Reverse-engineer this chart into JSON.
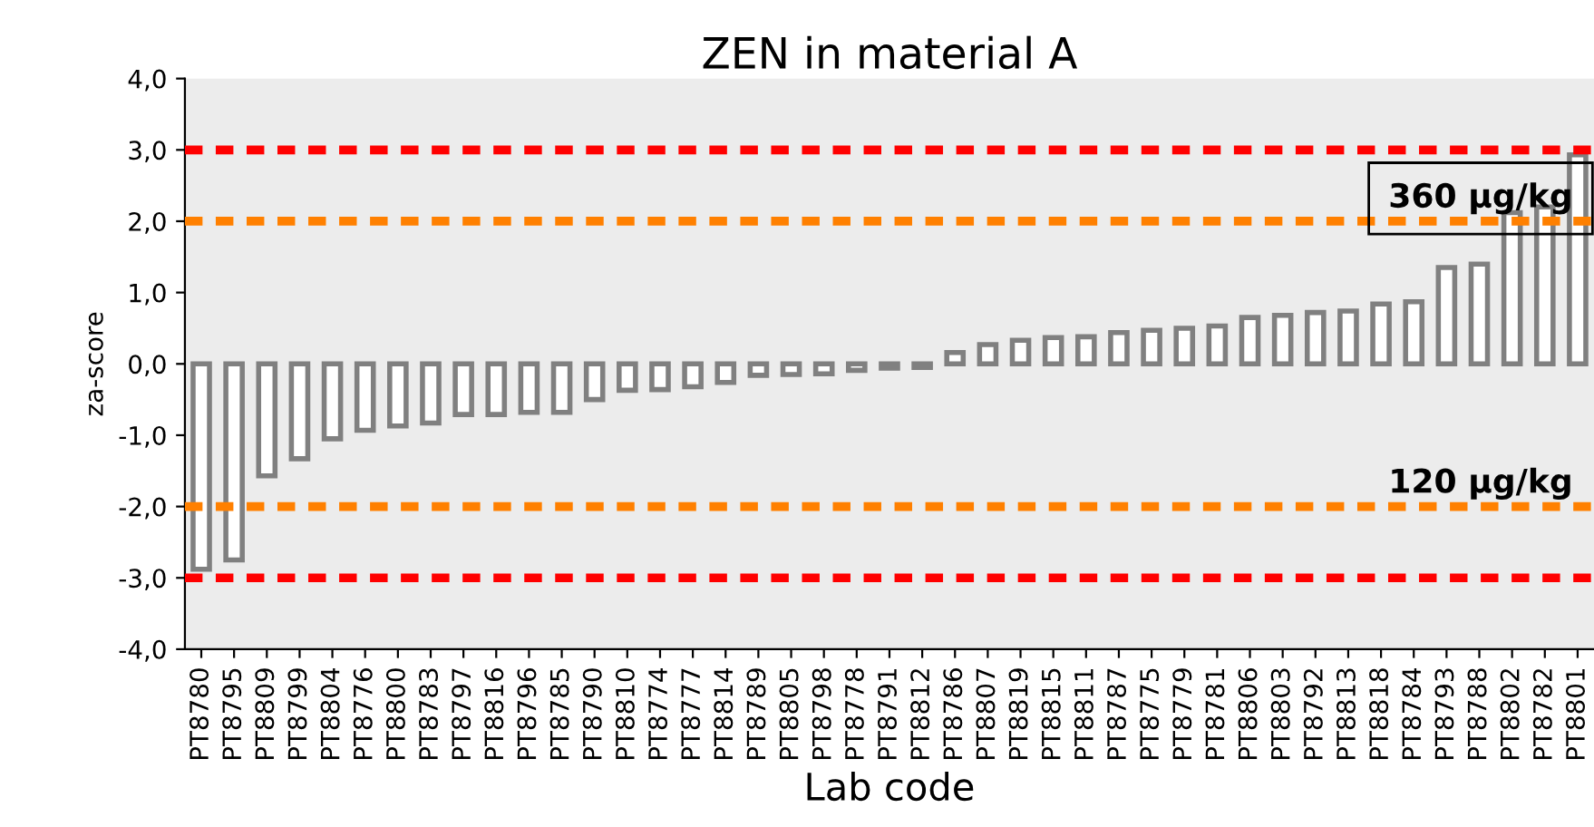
{
  "chart_data": {
    "type": "bar",
    "title": "ZEN in material A",
    "xlabel": "Lab code",
    "ylabel": "za-score",
    "categories": [
      "PT8780",
      "PT8795",
      "PT8809",
      "PT8799",
      "PT8804",
      "PT8776",
      "PT8800",
      "PT8783",
      "PT8797",
      "PT8816",
      "PT8796",
      "PT8785",
      "PT8790",
      "PT8810",
      "PT8774",
      "PT8777",
      "PT8814",
      "PT8789",
      "PT8805",
      "PT8798",
      "PT8778",
      "PT8791",
      "PT8812",
      "PT8786",
      "PT8807",
      "PT8819",
      "PT8815",
      "PT8811",
      "PT8787",
      "PT8775",
      "PT8779",
      "PT8781",
      "PT8806",
      "PT8803",
      "PT8792",
      "PT8813",
      "PT8818",
      "PT8784",
      "PT8793",
      "PT8788",
      "PT8802",
      "PT8782",
      "PT8801"
    ],
    "values": [
      -2.88,
      -2.75,
      -1.57,
      -1.33,
      -1.05,
      -0.93,
      -0.87,
      -0.83,
      -0.71,
      -0.71,
      -0.68,
      -0.68,
      -0.5,
      -0.37,
      -0.36,
      -0.32,
      -0.26,
      -0.16,
      -0.15,
      -0.14,
      -0.09,
      -0.06,
      -0.05,
      0.16,
      0.27,
      0.33,
      0.37,
      0.38,
      0.44,
      0.47,
      0.5,
      0.53,
      0.65,
      0.68,
      0.72,
      0.74,
      0.84,
      0.87,
      1.35,
      1.4,
      2.12,
      2.2,
      2.93
    ],
    "color": "#808080",
    "ylim": [
      -4,
      4
    ],
    "yticks": [
      {
        "value": -4,
        "label": "-4,0"
      },
      {
        "value": -3,
        "label": "-3,0"
      },
      {
        "value": -2,
        "label": "-2,0"
      },
      {
        "value": -1,
        "label": "-1,0"
      },
      {
        "value": 0,
        "label": "0,0"
      },
      {
        "value": 1,
        "label": "1,0"
      },
      {
        "value": 2,
        "label": "2,0"
      },
      {
        "value": 3,
        "label": "3,0"
      },
      {
        "value": 4,
        "label": "4,0"
      }
    ],
    "ref_lines": [
      {
        "axis": "y",
        "value": 3,
        "color": "#ff0000",
        "line_style": "dashed"
      },
      {
        "axis": "y",
        "value": 2,
        "color": "#ff8000",
        "line_style": "dashed"
      },
      {
        "axis": "y",
        "value": -2,
        "color": "#ff8000",
        "line_style": "dashed"
      },
      {
        "axis": "y",
        "value": -3,
        "color": "#ff0000",
        "line_style": "dashed"
      }
    ],
    "annotations": [
      "360 µg/kg",
      "120 µg/kg"
    ],
    "grid": false,
    "legend": false
  }
}
